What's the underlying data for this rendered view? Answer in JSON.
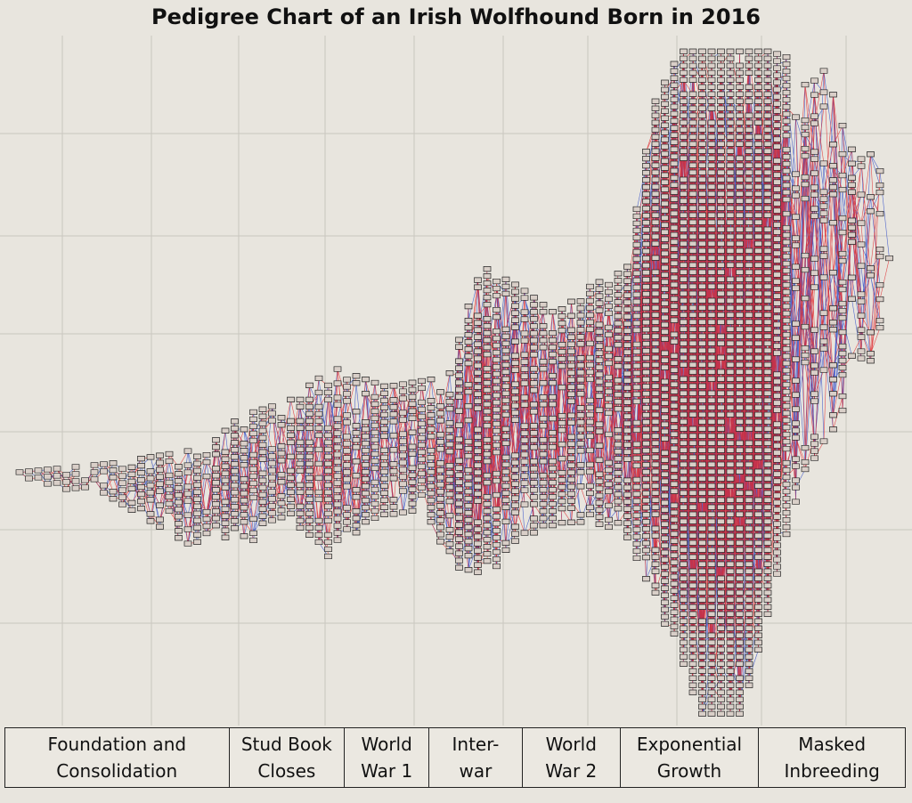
{
  "header": {
    "title": "Pedigree Chart of an Irish Wolfhound Born in 2016"
  },
  "eras": [
    {
      "lines": [
        "Foundation and",
        "Consolidation"
      ]
    },
    {
      "lines": [
        "Stud Book",
        "Closes"
      ]
    },
    {
      "lines": [
        "World",
        "War 1"
      ]
    },
    {
      "lines": [
        "Inter-",
        "war"
      ]
    },
    {
      "lines": [
        "World",
        "War 2"
      ]
    },
    {
      "lines": [
        "Exponential",
        "Growth"
      ]
    },
    {
      "lines": [
        "Masked",
        "Inbreeding"
      ]
    }
  ]
}
